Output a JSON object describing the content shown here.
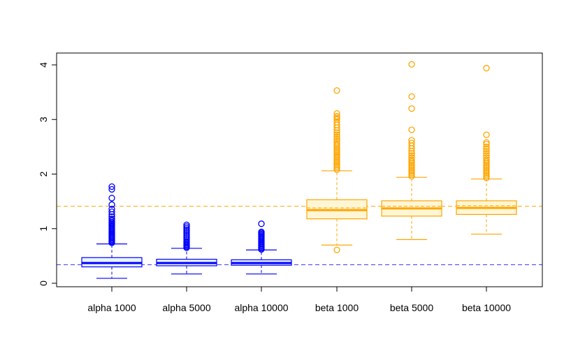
{
  "chart_data": {
    "type": "box",
    "title": "",
    "xlabel": "",
    "ylabel": "",
    "ylim": [
      0,
      4
    ],
    "yticks": [
      "0",
      "1",
      "2",
      "3",
      "4"
    ],
    "grid": false,
    "legend": "none",
    "reference_lines": [
      {
        "y": 0.34,
        "color": "#3333ff",
        "style": "dashed"
      },
      {
        "y": 1.41,
        "color": "#ffa500",
        "style": "dashed"
      }
    ],
    "categories": [
      "alpha 1000",
      "alpha 5000",
      "alpha 10000",
      "beta 1000",
      "beta 5000",
      "beta 10000"
    ],
    "boxes": [
      {
        "color": "#0000ff",
        "fill": "#e8f4ff",
        "min": 0.09,
        "q1": 0.3,
        "median": 0.37,
        "q3": 0.47,
        "max": 0.72,
        "mean": 0.36,
        "outliers": [
          0.74,
          0.76,
          0.78,
          0.8,
          0.82,
          0.84,
          0.86,
          0.88,
          0.9,
          0.92,
          0.94,
          0.96,
          0.98,
          1.0,
          1.02,
          1.04,
          1.06,
          1.08,
          1.1,
          1.12,
          1.15,
          1.18,
          1.22,
          1.26,
          1.31,
          1.36,
          1.44,
          1.56,
          1.72,
          1.77
        ]
      },
      {
        "color": "#0000ff",
        "fill": "#e8f4ff",
        "min": 0.17,
        "q1": 0.32,
        "median": 0.37,
        "q3": 0.44,
        "max": 0.64,
        "mean": 0.37,
        "outliers": [
          0.65,
          0.67,
          0.69,
          0.71,
          0.73,
          0.75,
          0.77,
          0.8,
          0.83,
          0.86,
          0.89,
          0.92,
          0.95,
          0.98,
          1.01,
          1.04,
          1.07
        ]
      },
      {
        "color": "#0000ff",
        "fill": "#e8f4ff",
        "min": 0.17,
        "q1": 0.33,
        "median": 0.37,
        "q3": 0.43,
        "max": 0.61,
        "mean": 0.37,
        "outliers": [
          0.62,
          0.64,
          0.66,
          0.68,
          0.7,
          0.72,
          0.74,
          0.76,
          0.78,
          0.8,
          0.82,
          0.84,
          0.86,
          0.88,
          0.9,
          0.92,
          0.94,
          1.09
        ]
      },
      {
        "color": "#ffa500",
        "fill": "#fff6d6",
        "min": 0.7,
        "q1": 1.18,
        "median": 1.34,
        "q3": 1.53,
        "max": 2.06,
        "mean": 1.38,
        "outliers": [
          0.61,
          2.08,
          2.11,
          2.14,
          2.17,
          2.2,
          2.23,
          2.26,
          2.29,
          2.32,
          2.35,
          2.38,
          2.41,
          2.44,
          2.47,
          2.5,
          2.53,
          2.56,
          2.6,
          2.64,
          2.68,
          2.72,
          2.76,
          2.8,
          2.85,
          2.9,
          2.95,
          3.0,
          3.03,
          3.06,
          3.11,
          3.53
        ]
      },
      {
        "color": "#ffa500",
        "fill": "#fff6d6",
        "min": 0.8,
        "q1": 1.23,
        "median": 1.37,
        "q3": 1.51,
        "max": 1.94,
        "mean": 1.41,
        "outliers": [
          1.96,
          1.99,
          2.02,
          2.05,
          2.08,
          2.11,
          2.14,
          2.17,
          2.2,
          2.23,
          2.26,
          2.3,
          2.34,
          2.38,
          2.42,
          2.47,
          2.52,
          2.57,
          2.62,
          2.81,
          3.2,
          3.42,
          4.01
        ]
      },
      {
        "color": "#ffa500",
        "fill": "#fff6d6",
        "min": 0.9,
        "q1": 1.26,
        "median": 1.38,
        "q3": 1.51,
        "max": 1.91,
        "mean": 1.42,
        "outliers": [
          1.93,
          1.96,
          1.99,
          2.02,
          2.05,
          2.08,
          2.11,
          2.14,
          2.17,
          2.2,
          2.23,
          2.26,
          2.3,
          2.34,
          2.38,
          2.42,
          2.46,
          2.5,
          2.55,
          2.58,
          2.72,
          3.94
        ]
      }
    ]
  }
}
